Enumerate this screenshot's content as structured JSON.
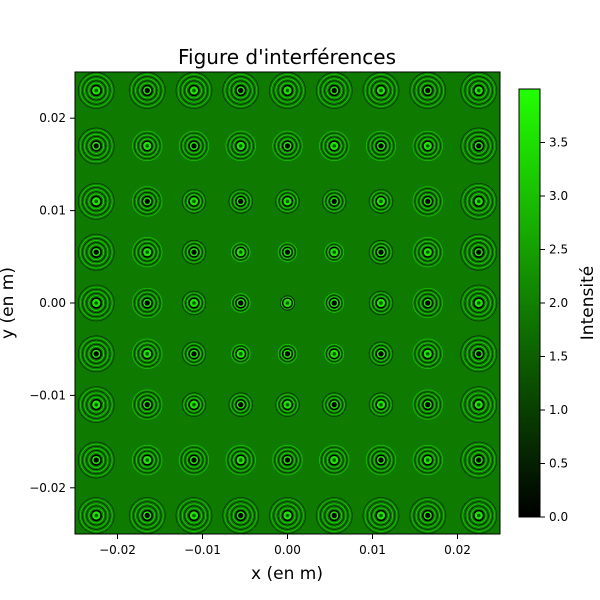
{
  "chart_data": {
    "type": "heatmap",
    "title": "Figure d'interférences",
    "xlabel": "x (en m)",
    "ylabel": "y (en m)",
    "xlim": [
      -0.025,
      0.025
    ],
    "ylim": [
      -0.025,
      0.025
    ],
    "xticks": [
      -0.02,
      -0.01,
      0.0,
      0.01,
      0.02
    ],
    "xtick_labels": [
      "−0.02",
      "−0.01",
      "0.00",
      "0.01",
      "0.02"
    ],
    "yticks": [
      -0.02,
      -0.01,
      0.0,
      0.01,
      0.02
    ],
    "ytick_labels": [
      "−0.02",
      "−0.01",
      "0.00",
      "0.01",
      "0.02"
    ],
    "grid": false,
    "background_intensity": 2.0,
    "spot_x": [
      -0.0225,
      -0.0165,
      -0.011,
      -0.0055,
      0.0,
      0.0055,
      0.011,
      0.0165,
      0.0225
    ],
    "spot_y": [
      0.023,
      0.017,
      0.011,
      0.0055,
      0.0,
      -0.0055,
      -0.011,
      -0.017,
      -0.023
    ],
    "colorbar": {
      "label": "Intensité",
      "range": [
        0.0,
        4.0
      ],
      "ticks": [
        0.0,
        0.5,
        1.0,
        1.5,
        2.0,
        2.5,
        3.0,
        3.5
      ],
      "tick_labels": [
        "0.0",
        "0.5",
        "1.0",
        "1.5",
        "2.0",
        "2.5",
        "3.0",
        "3.5"
      ],
      "colormap": [
        "#000000",
        "#22ff00"
      ]
    },
    "colors": {
      "background": "#0f7a00",
      "dark_ring": "#000000",
      "bright_ring": "#22ff00"
    }
  }
}
